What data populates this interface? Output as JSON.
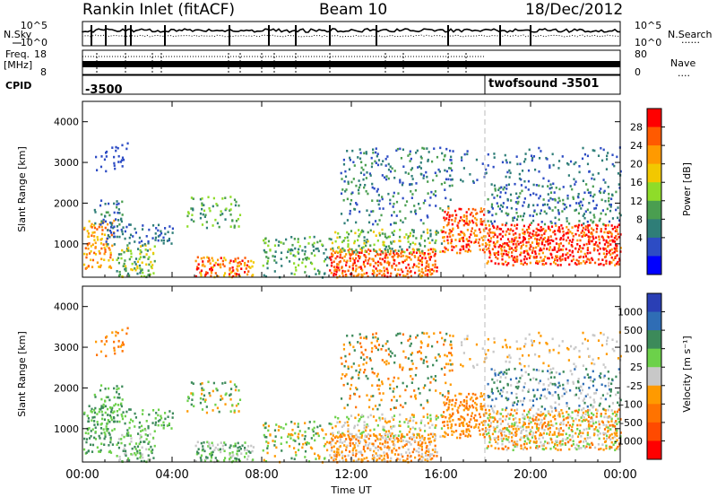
{
  "header": {
    "station": "Rankin Inlet (fitACF)",
    "beam": "Beam 10",
    "date": "18/Dec/2012"
  },
  "panels": {
    "nsky_label": "N.Sky",
    "nsearch_label": "N.Search",
    "nsearch_line": "......",
    "noise_ticks_left": [
      "10^5",
      "10^0"
    ],
    "noise_ticks_right": [
      "10^5",
      "10^0"
    ],
    "freq_label_top": "Freq.",
    "freq_label_bottom": "[MHz]",
    "freq_ticks": [
      "18",
      "8"
    ],
    "nave_label": "Nave",
    "nave_line": "....",
    "nave_ticks": [
      "80",
      "0"
    ],
    "cpid_label": "CPID",
    "cpid_first": "-3500",
    "cpid_second": "twofsound -3501"
  },
  "chart_data": [
    {
      "type": "heatmap",
      "panel": "power",
      "ylabel": "Slant Range [km]",
      "xlabel": "",
      "ylim": [
        180,
        4500
      ],
      "yticks": [
        "1000",
        "2000",
        "3000",
        "4000"
      ],
      "colorbar_label": "Power [dB]",
      "colorbar_ticks": [
        "28",
        "24",
        "20",
        "16",
        "12",
        "8",
        "4"
      ],
      "colorbar_colors": [
        "#ff0000",
        "#ff5a00",
        "#ff9a00",
        "#f2c800",
        "#8fdc29",
        "#4a9e50",
        "#2f7e78",
        "#2d4cc4",
        "#0000ff"
      ]
    },
    {
      "type": "heatmap",
      "panel": "velocity",
      "ylabel": "Slant Range [km]",
      "xlabel": "Time UT",
      "ylim": [
        180,
        4500
      ],
      "xticks": [
        "00:00",
        "04:00",
        "08:00",
        "12:00",
        "16:00",
        "20:00",
        "00:00"
      ],
      "yticks": [
        "1000",
        "2000",
        "3000",
        "4000"
      ],
      "colorbar_label": "Velocity [m s⁻¹]",
      "colorbar_ticks": [
        "1000",
        "500",
        "100",
        "25",
        "-25",
        "-100",
        "-500",
        "-1000"
      ],
      "colorbar_colors": [
        "#2a3fb5",
        "#2f6db5",
        "#3c8a5a",
        "#6cd14a",
        "#c8c8c8",
        "#ff9a00",
        "#ff7300",
        "#ff4a00",
        "#ff0000"
      ]
    }
  ]
}
